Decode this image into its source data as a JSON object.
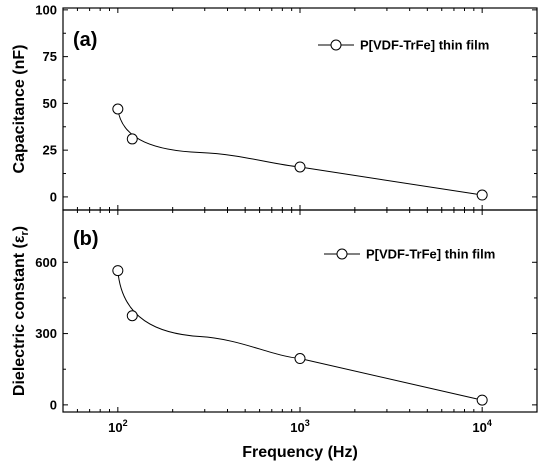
{
  "chart_data": [
    {
      "type": "scatter",
      "panel_label": "(a)",
      "xscale": "log",
      "xlim": [
        50,
        20000
      ],
      "ylim": [
        -7,
        101
      ],
      "xlabel": "",
      "ylabel": "Capacitance (nF)",
      "yticks": [
        0,
        25,
        50,
        75,
        100
      ],
      "legend": "top-right",
      "series": [
        {
          "name": "P[VDF-TrFe] thin film",
          "x": [
            100,
            120,
            1000,
            10000
          ],
          "y": [
            47,
            31,
            16,
            1
          ]
        }
      ]
    },
    {
      "type": "scatter",
      "panel_label": "(b)",
      "xscale": "log",
      "xlim": [
        50,
        20000
      ],
      "ylim": [
        -30,
        820
      ],
      "xlabel": "Frequency (Hz)",
      "ylabel": "Dielectric constant (ε",
      "ylabel_subscript": "r",
      "ylabel_close": ")",
      "yticks": [
        0,
        300,
        600
      ],
      "xticks": [
        100,
        1000,
        10000
      ],
      "xtick_labels": [
        {
          "base": "10",
          "exp": "2"
        },
        {
          "base": "10",
          "exp": "3"
        },
        {
          "base": "10",
          "exp": "4"
        }
      ],
      "legend": "top-right",
      "series": [
        {
          "name": "P[VDF-TrFe] thin film",
          "x": [
            100,
            120,
            1000,
            10000
          ],
          "y": [
            565,
            375,
            195,
            20
          ]
        }
      ]
    }
  ]
}
